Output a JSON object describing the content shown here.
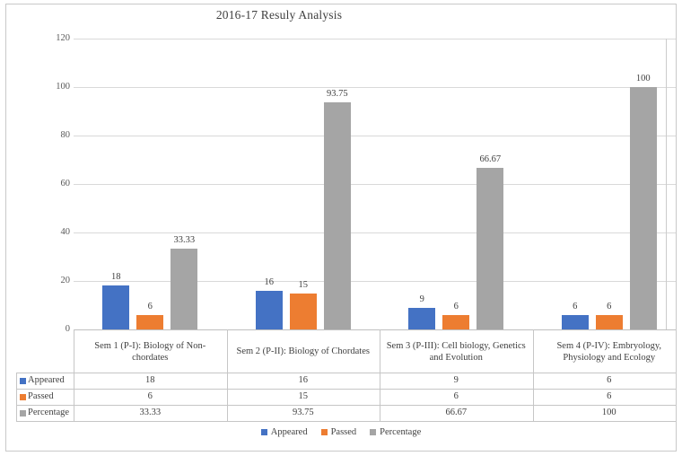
{
  "window": {
    "title": "2016-17 Resuly Analysis"
  },
  "chart_data": {
    "type": "bar",
    "title": "2016-17 Resuly Analysis",
    "categories": [
      "Sem 1 (P-I): Biology of Non-chordates",
      "Sem 2 (P-II): Biology of Chordates",
      "Sem 3 (P-III): Cell biology, Genetics and Evolution",
      "Sem 4 (P-IV): Embryology, Physiology and Ecology"
    ],
    "series": [
      {
        "name": "Appeared",
        "color": "#4472C4",
        "values": [
          18,
          16,
          9,
          6
        ],
        "labels": [
          "18",
          "16",
          "9",
          "6"
        ]
      },
      {
        "name": "Passed",
        "color": "#ED7D31",
        "values": [
          6,
          15,
          6,
          6
        ],
        "labels": [
          "6",
          "15",
          "6",
          "6"
        ]
      },
      {
        "name": "Percentage",
        "color": "#A5A5A5",
        "values": [
          33.33,
          93.75,
          66.67,
          100
        ],
        "labels": [
          "33.33",
          "93.75",
          "66.67",
          "100"
        ]
      }
    ],
    "ylim": [
      0,
      120
    ],
    "yticks": [
      0,
      20,
      40,
      60,
      80,
      100,
      120
    ],
    "grid": true,
    "legend_position": "bottom",
    "legend_entries": [
      "Appeared",
      "Passed",
      "Percentage"
    ],
    "data_table": true
  },
  "colors": {
    "gridline": "#d9d9d9",
    "axis_line": "#bfbfbf",
    "table_border": "#c6c6c6",
    "tick_text": "#595959",
    "label_text": "#404040",
    "outer_border": "#c9c9c9"
  }
}
